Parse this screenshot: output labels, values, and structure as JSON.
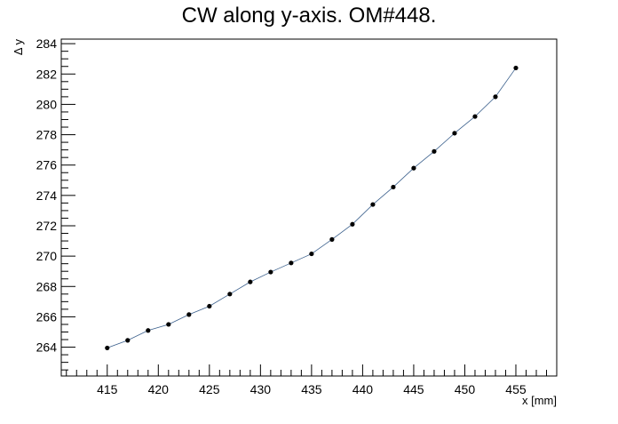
{
  "chart_data": {
    "type": "line",
    "title": "CW along y-axis. OM#448.",
    "xlabel": "x [mm]",
    "ylabel": "Δ y",
    "xlim": [
      410.5,
      459
    ],
    "ylim": [
      262.1,
      284.3
    ],
    "x_ticks": [
      415,
      420,
      425,
      430,
      435,
      440,
      445,
      450,
      455
    ],
    "x_tick_labels": [
      "415",
      "420",
      "425",
      "430",
      "435",
      "440",
      "445",
      "450",
      "455"
    ],
    "y_ticks": [
      264,
      266,
      268,
      270,
      272,
      274,
      276,
      278,
      280,
      282,
      284
    ],
    "y_tick_labels": [
      "264",
      "266",
      "268",
      "270",
      "272",
      "274",
      "276",
      "278",
      "280",
      "282",
      "284"
    ],
    "grid": false,
    "legend": "none",
    "line_color": "#3a5f8c",
    "marker_color": "#000000",
    "series": [
      {
        "x": [
          415,
          417,
          419,
          421,
          423,
          425,
          427,
          429,
          431,
          433,
          435,
          437,
          439,
          441,
          443,
          445,
          447,
          449,
          451,
          453,
          455
        ],
        "y": [
          263.95,
          264.45,
          265.1,
          265.5,
          266.15,
          266.7,
          267.5,
          268.3,
          268.95,
          269.55,
          270.15,
          271.1,
          272.1,
          273.4,
          274.55,
          275.8,
          276.9,
          278.1,
          279.2,
          280.5,
          282.4
        ]
      }
    ]
  }
}
